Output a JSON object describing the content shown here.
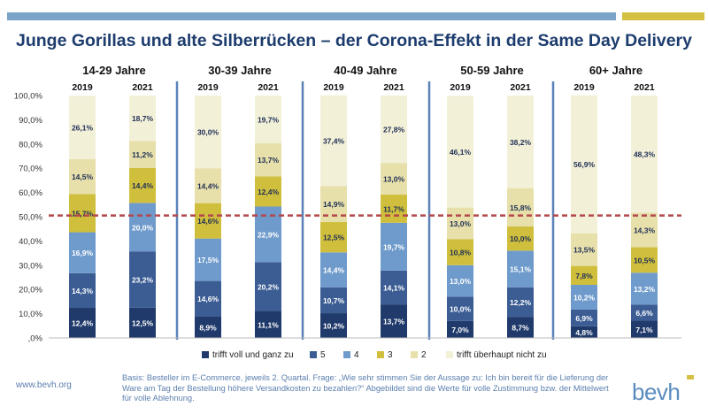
{
  "header": {
    "title": "Junge Gorillas und alte Silberrücken – der Corona-Effekt in der Same Day Delivery"
  },
  "colors": {
    "accent_blue": "#7aa3c9",
    "accent_gold": "#d4c141",
    "threshold_line": "#b5484b"
  },
  "chart_data": {
    "type": "bar",
    "stacked": true,
    "yaxis": {
      "ticks": [
        ",0%",
        "10,0%",
        "20,0%",
        "30,0%",
        "40,0%",
        "50,0%",
        "60,0%",
        "70,0%",
        "80,0%",
        "90,0%",
        "100,0%"
      ],
      "ylim": [
        0,
        100
      ]
    },
    "reference_line": 50.5,
    "groups": [
      {
        "label": "14-29 Jahre",
        "categories": [
          "2019",
          "2021"
        ]
      },
      {
        "label": "30-39 Jahre",
        "categories": [
          "2019",
          "2021"
        ]
      },
      {
        "label": "40-49 Jahre",
        "categories": [
          "2019",
          "2021"
        ]
      },
      {
        "label": "50-59 Jahre",
        "categories": [
          "2019",
          "2021"
        ]
      },
      {
        "label": "60+ Jahre",
        "categories": [
          "2019",
          "2021"
        ]
      }
    ],
    "series": [
      {
        "name": "trifft voll und ganz zu",
        "color": "#203a6b",
        "label_color": "#ffffff",
        "values": [
          12.4,
          12.5,
          8.9,
          11.1,
          10.2,
          13.7,
          7.0,
          8.7,
          4.8,
          7.1
        ],
        "labels": [
          "12,4%",
          "12,5%",
          "8,9%",
          "11,1%",
          "10,2%",
          "13,7%",
          "7,0%",
          "8,7%",
          "4,8%",
          "7,1%"
        ]
      },
      {
        "name": "5",
        "color": "#3b5d94",
        "label_color": "#ffffff",
        "values": [
          14.3,
          23.2,
          14.6,
          20.2,
          10.7,
          14.1,
          10.0,
          12.2,
          6.9,
          6.6
        ],
        "labels": [
          "14,3%",
          "23,2%",
          "14,6%",
          "20,2%",
          "10,7%",
          "14,1%",
          "10,0%",
          "12,2%",
          "6,9%",
          "6,6%"
        ]
      },
      {
        "name": "4",
        "color": "#6f9bcc",
        "label_color": "#ffffff",
        "values": [
          16.9,
          20.0,
          17.5,
          22.9,
          14.4,
          19.7,
          13.0,
          15.1,
          10.2,
          13.2
        ],
        "labels": [
          "16,9%",
          "20,0%",
          "17,5%",
          "22,9%",
          "14,4%",
          "19,7%",
          "13,0%",
          "15,1%",
          "10,2%",
          "13,2%"
        ]
      },
      {
        "name": "3",
        "color": "#d0bf3c",
        "label_color": "#1f2f55",
        "values": [
          15.7,
          14.4,
          14.6,
          12.4,
          12.5,
          11.7,
          10.8,
          10.0,
          7.8,
          10.5
        ],
        "labels": [
          "15,7%",
          "14,4%",
          "14,6%",
          "12,4%",
          "12,5%",
          "11,7%",
          "10,8%",
          "10,0%",
          "7,8%",
          "10,5%"
        ]
      },
      {
        "name": "2",
        "color": "#e7e0ab",
        "label_color": "#1f2f55",
        "values": [
          14.5,
          11.2,
          14.4,
          13.7,
          14.9,
          13.0,
          13.0,
          15.8,
          13.5,
          14.3
        ],
        "labels": [
          "14,5%",
          "11,2%",
          "14,4%",
          "13,7%",
          "14,9%",
          "13,0%",
          "13,0%",
          "15,8%",
          "13,5%",
          "14,3%"
        ]
      },
      {
        "name": "trifft überhaupt nicht zu",
        "color": "#f3f0d8",
        "label_color": "#1f2f55",
        "values": [
          26.1,
          18.7,
          30.0,
          19.7,
          37.4,
          27.8,
          46.1,
          38.2,
          56.9,
          48.3
        ],
        "labels": [
          "26,1%",
          "18,7%",
          "30,0%",
          "19,7%",
          "37,4%",
          "27,8%",
          "46,1%",
          "38,2%",
          "56,9%",
          "48,3%"
        ]
      }
    ]
  },
  "footer": {
    "source": "www.bevh.org",
    "note": "Basis: Besteller im E-Commerce, jeweils 2. Quartal. Frage: „Wie sehr stimmen Sie der Aussage zu: Ich bin bereit für die Lieferung der Ware am Tag der Bestellung höhere Versandkosten zu bezahlen?“ Abgebildet sind die Werte für volle Zustimmung bzw. der Mittelwert für volle Ablehnung.",
    "logo": "bevh"
  }
}
